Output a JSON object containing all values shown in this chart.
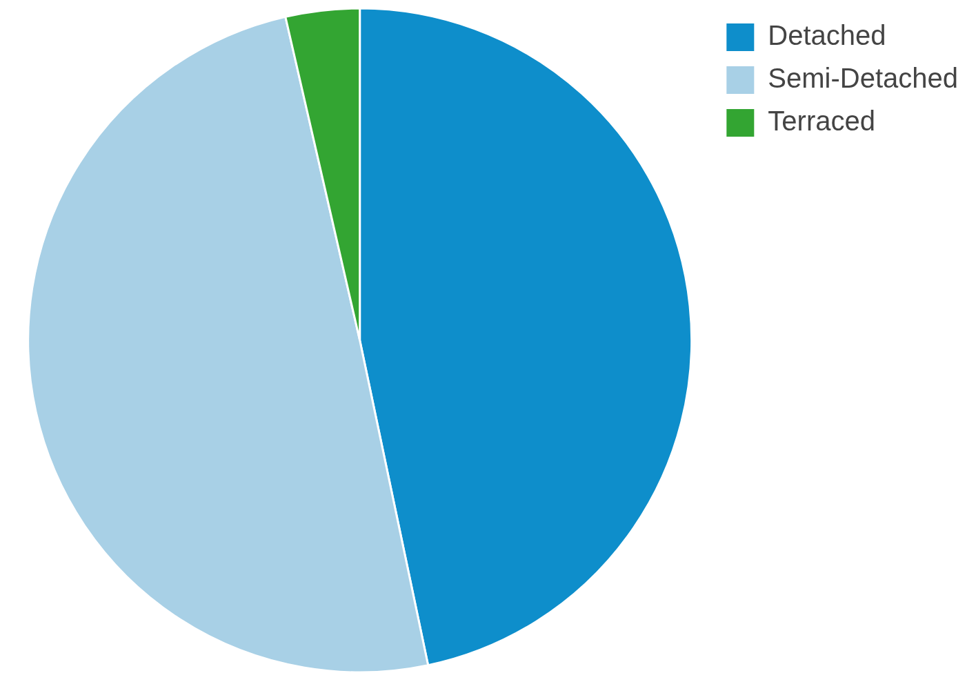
{
  "chart_data": {
    "type": "pie",
    "categories": [
      "Detached",
      "Semi-Detached",
      "Terraced"
    ],
    "values": [
      46.7,
      49.7,
      3.6
    ],
    "colors": [
      "#0e8ecb",
      "#a8d0e6",
      "#33a532"
    ],
    "legend": "top right"
  }
}
